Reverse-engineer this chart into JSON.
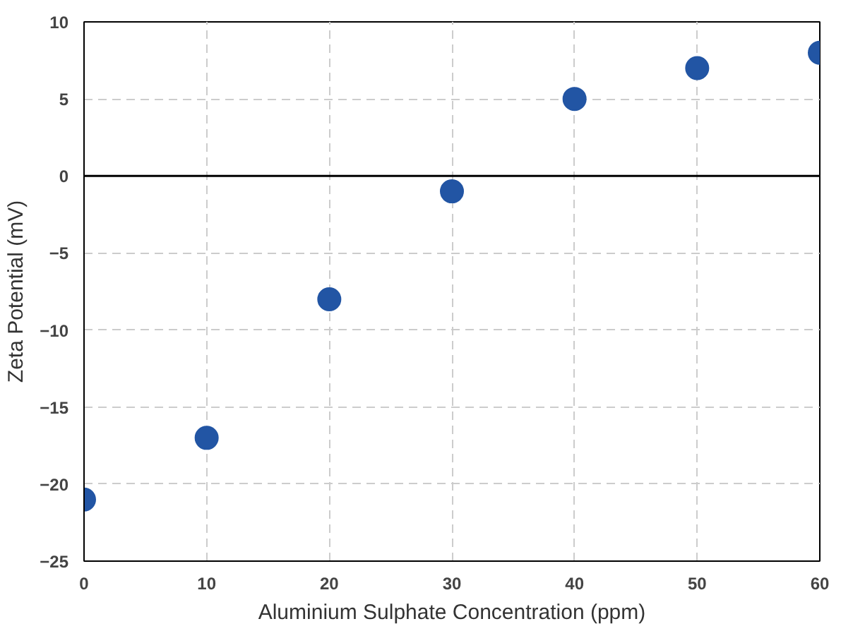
{
  "chart_data": {
    "type": "scatter",
    "xlabel": "Aluminium Sulphate Concentration (ppm)",
    "ylabel": "Zeta Potential (mV)",
    "x": [
      0,
      10,
      20,
      30,
      40,
      50,
      60
    ],
    "series": [
      {
        "color": "#2255a4",
        "values": [
          -21,
          -17,
          -8,
          -1,
          5,
          7,
          8
        ]
      }
    ],
    "xlim": [
      0,
      60
    ],
    "xticks": [
      0,
      10,
      20,
      30,
      40,
      50,
      60
    ],
    "ylim": [
      -25,
      10
    ],
    "yticks": [
      -25,
      -20,
      -15,
      -10,
      -5,
      0,
      5,
      10
    ],
    "ref_lines": [
      {
        "axis": "y",
        "value": 0,
        "color": "#000000"
      }
    ],
    "grid": true,
    "marker": "circle"
  }
}
